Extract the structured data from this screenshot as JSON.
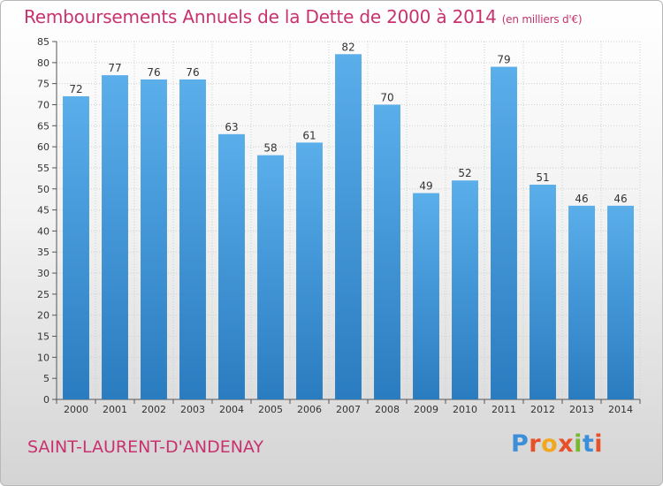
{
  "header": {
    "title": "Remboursements Annuels de la Dette de 2000 à 2014",
    "unit": "(en milliers d'€)"
  },
  "footer": {
    "commune": "SAINT-LAURENT-D'ANDENAY",
    "logo_text": "Proxiti"
  },
  "colors": {
    "title": "#c8326e",
    "bar_top": "#5aaeea",
    "bar_bottom": "#2a7cc0",
    "logo_letters": [
      "#3a8fd8",
      "#e8502a",
      "#f2a81e",
      "#e8502a",
      "#78b832",
      "#3a8fd8",
      "#e8502a"
    ]
  },
  "chart_data": {
    "type": "bar",
    "title": "Remboursements Annuels de la Dette de 2000 à 2014",
    "unit": "(en milliers d'€)",
    "categories": [
      "2000",
      "2001",
      "2002",
      "2003",
      "2004",
      "2005",
      "2006",
      "2007",
      "2008",
      "2009",
      "2010",
      "2011",
      "2012",
      "2013",
      "2014"
    ],
    "values": [
      72,
      77,
      76,
      76,
      63,
      58,
      61,
      82,
      70,
      49,
      52,
      79,
      51,
      46,
      46
    ],
    "ylim": [
      0,
      85
    ],
    "yticks": [
      0,
      5,
      10,
      15,
      20,
      25,
      30,
      35,
      40,
      45,
      50,
      55,
      60,
      65,
      70,
      75,
      80,
      85
    ],
    "grid": true,
    "legend": "none"
  }
}
